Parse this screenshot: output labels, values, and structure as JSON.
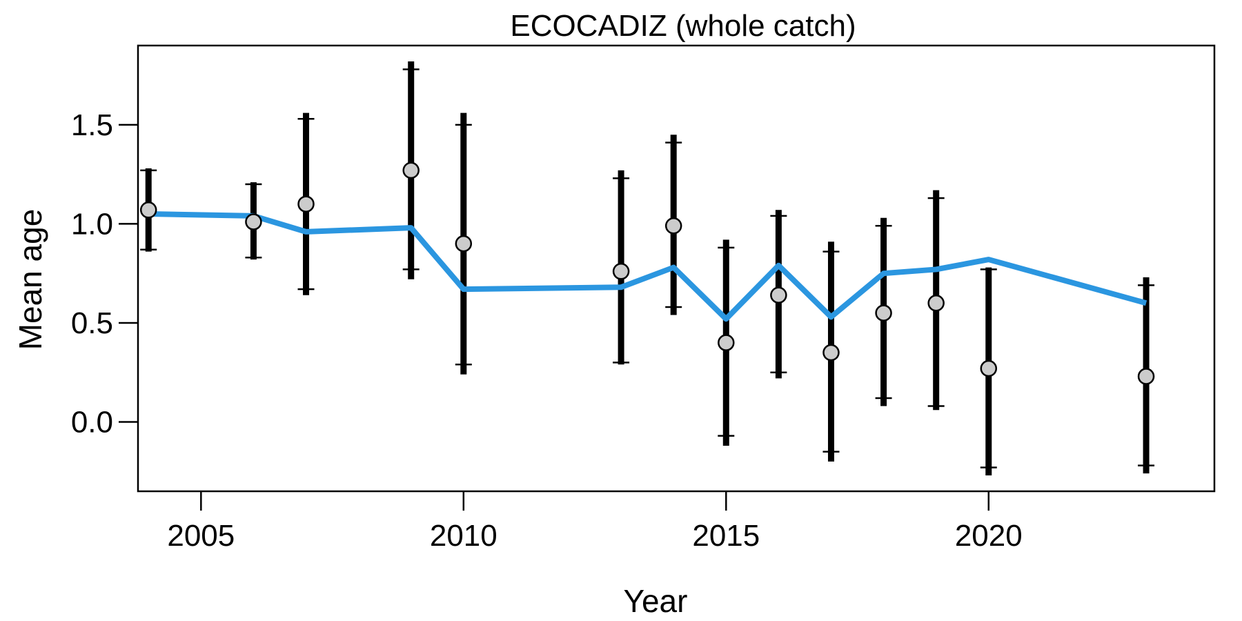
{
  "chart_data": {
    "type": "line",
    "title": "ECOCADIZ (whole catch)",
    "xlabel": "Year",
    "ylabel": "Mean age",
    "xlim": [
      2003.8,
      2024.3
    ],
    "ylim": [
      -0.35,
      1.9
    ],
    "xticks": [
      {
        "value": 2005,
        "label": "2005"
      },
      {
        "value": 2010,
        "label": "2010"
      },
      {
        "value": 2015,
        "label": "2015"
      },
      {
        "value": 2020,
        "label": "2020"
      }
    ],
    "yticks": [
      {
        "value": 0.0,
        "label": "0.0"
      },
      {
        "value": 0.5,
        "label": "0.5"
      },
      {
        "value": 1.0,
        "label": "1.0"
      },
      {
        "value": 1.5,
        "label": "1.5"
      }
    ],
    "grid": false,
    "legend": "none",
    "observed": {
      "x": [
        2004,
        2006,
        2007,
        2009,
        2010,
        2013,
        2014,
        2015,
        2016,
        2017,
        2018,
        2019,
        2020,
        2023
      ],
      "y": [
        1.07,
        1.01,
        1.1,
        1.27,
        0.9,
        0.76,
        0.99,
        0.4,
        0.64,
        0.35,
        0.55,
        0.6,
        0.27,
        0.23
      ],
      "lower_outer": [
        0.86,
        0.82,
        0.64,
        0.72,
        0.24,
        0.29,
        0.54,
        -0.12,
        0.22,
        -0.2,
        0.08,
        0.06,
        -0.27,
        -0.26
      ],
      "upper_outer": [
        1.28,
        1.21,
        1.56,
        1.82,
        1.56,
        1.27,
        1.45,
        0.92,
        1.07,
        0.91,
        1.03,
        1.17,
        0.78,
        0.73
      ],
      "lower_inner": [
        0.87,
        0.83,
        0.67,
        0.77,
        0.29,
        0.3,
        0.58,
        -0.07,
        0.25,
        -0.15,
        0.12,
        0.08,
        -0.23,
        -0.22
      ],
      "upper_inner": [
        1.27,
        1.2,
        1.53,
        1.78,
        1.5,
        1.23,
        1.41,
        0.88,
        1.04,
        0.86,
        0.99,
        1.13,
        0.77,
        0.69
      ]
    },
    "expected": {
      "x": [
        2004,
        2006,
        2007,
        2009,
        2010,
        2013,
        2014,
        2015,
        2016,
        2017,
        2018,
        2019,
        2020,
        2023
      ],
      "y": [
        1.05,
        1.04,
        0.96,
        0.98,
        0.67,
        0.68,
        0.78,
        0.52,
        0.79,
        0.53,
        0.75,
        0.77,
        0.82,
        0.6
      ]
    },
    "colors": {
      "expected_line": "#2b96e0",
      "error_bar": "#000000",
      "point_fill": "#cccccc",
      "point_stroke": "#000000"
    }
  }
}
